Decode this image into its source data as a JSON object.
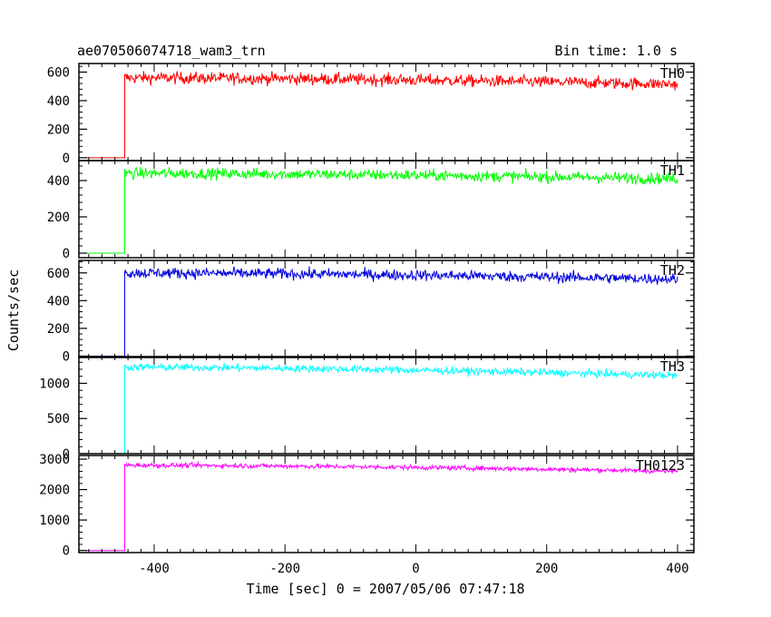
{
  "chart_data": {
    "type": "line",
    "title_left": "ae070506074718_wam3_trn",
    "title_right": "Bin time: 1.0 s",
    "xlabel": "Time [sec] 0 = 2007/05/06 07:47:18",
    "ylabel": "Counts/sec",
    "xlim": [
      -515,
      425
    ],
    "x_ticks": [
      -400,
      -200,
      0,
      200,
      400
    ],
    "grid": false,
    "panels": [
      {
        "name": "TH0",
        "color": "#ff0000",
        "ylim": [
          -20,
          660
        ],
        "y_ticks": [
          0,
          200,
          400,
          600
        ],
        "pre_level": 0,
        "onset": -445,
        "level_start": 560,
        "level_end": 515,
        "noise": 30
      },
      {
        "name": "TH1",
        "color": "#00ff00",
        "ylim": [
          -25,
          510
        ],
        "y_ticks": [
          0,
          200,
          400
        ],
        "pre_level": 0,
        "onset": -445,
        "level_start": 440,
        "level_end": 410,
        "noise": 22
      },
      {
        "name": "TH2",
        "color": "#0000dd",
        "ylim": [
          -10,
          690
        ],
        "y_ticks": [
          0,
          200,
          400,
          600
        ],
        "pre_level": 0,
        "onset": -445,
        "level_start": 600,
        "level_end": 555,
        "noise": 28
      },
      {
        "name": "TH3",
        "color": "#00ffff",
        "ylim": [
          0,
          1380
        ],
        "y_ticks": [
          0,
          500,
          1000
        ],
        "pre_level": 0,
        "onset": -445,
        "level_start": 1230,
        "level_end": 1110,
        "noise": 38
      },
      {
        "name": "TH0123",
        "color": "#ff00ff",
        "ylim": [
          -70,
          3120
        ],
        "y_ticks": [
          0,
          1000,
          2000,
          3000
        ],
        "pre_level": 0,
        "onset": -445,
        "level_start": 2800,
        "level_end": 2600,
        "noise": 55
      }
    ]
  }
}
